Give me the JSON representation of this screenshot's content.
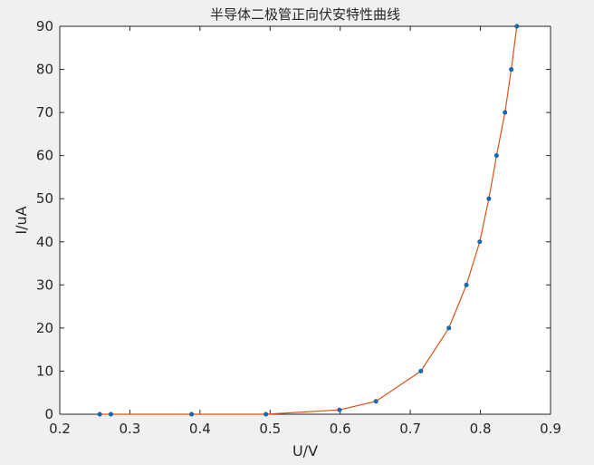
{
  "chart_data": {
    "type": "line",
    "title": "半导体二极管正向伏安特性曲线",
    "xlabel": "U/V",
    "ylabel": "I/uA",
    "xlim": [
      0.2,
      0.9
    ],
    "ylim": [
      0,
      90
    ],
    "xticks": [
      "0.2",
      "0.3",
      "0.4",
      "0.5",
      "0.6",
      "0.7",
      "0.8",
      "0.9"
    ],
    "yticks": [
      "0",
      "10",
      "20",
      "30",
      "40",
      "50",
      "60",
      "70",
      "80",
      "90"
    ],
    "grid": false,
    "series": [
      {
        "x": [
          0.257,
          0.273,
          0.388,
          0.494,
          0.599,
          0.651,
          0.715,
          0.755,
          0.78,
          0.799,
          0.812,
          0.823,
          0.835,
          0.844,
          0.852
        ],
        "y": [
          0,
          0,
          0,
          0,
          1,
          3,
          10,
          20,
          30,
          40,
          50,
          60,
          70,
          80,
          90
        ]
      }
    ],
    "colors": {
      "line": "#d95319",
      "marker": "#0072bd"
    }
  }
}
